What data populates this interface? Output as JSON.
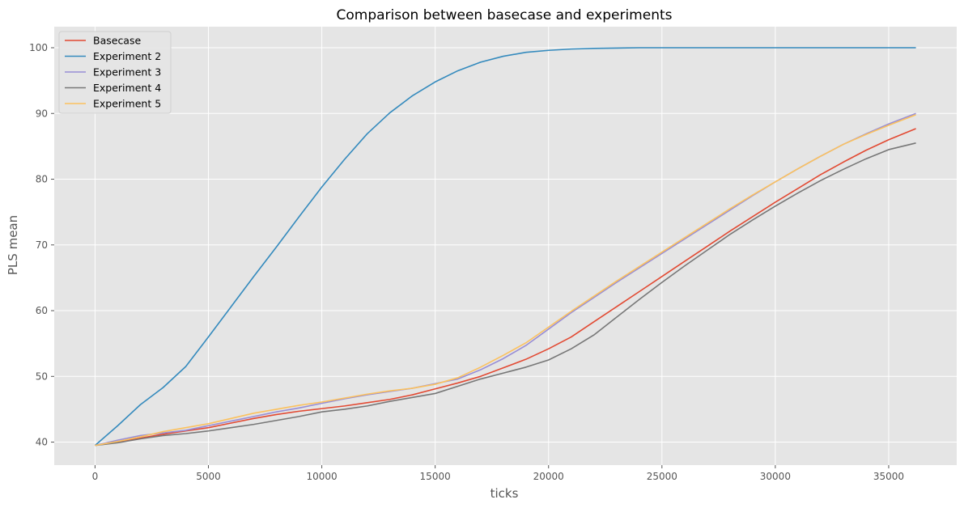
{
  "chart_data": {
    "type": "line",
    "title": "Comparison between basecase and experiments",
    "xlabel": "ticks",
    "ylabel": "PLS mean",
    "xlim": [
      -1800,
      38000
    ],
    "ylim": [
      36.5,
      103.2
    ],
    "xticks": [
      0,
      5000,
      10000,
      15000,
      20000,
      25000,
      30000,
      35000
    ],
    "yticks": [
      40,
      50,
      60,
      70,
      80,
      90,
      100
    ],
    "xtick_labels": [
      "0",
      "5000",
      "10000",
      "15000",
      "20000",
      "25000",
      "30000",
      "35000"
    ],
    "ytick_labels": [
      "40",
      "50",
      "60",
      "70",
      "80",
      "90",
      "100"
    ],
    "grid": true,
    "legend_position": "top-left",
    "style": {
      "plot_bg": "#e5e5e5",
      "grid": "#ffffff"
    },
    "series": [
      {
        "name": "Basecase",
        "color": "#e24a33",
        "x": [
          0,
          1000,
          2000,
          3000,
          4000,
          5000,
          6000,
          7000,
          8000,
          9000,
          10000,
          11000,
          12000,
          13000,
          14000,
          15000,
          16000,
          17000,
          18000,
          19000,
          20000,
          21000,
          22000,
          23000,
          24000,
          25000,
          26000,
          27000,
          28000,
          29000,
          30000,
          31000,
          32000,
          33000,
          34000,
          35000,
          36200
        ],
        "y": [
          39.5,
          40.0,
          40.6,
          41.2,
          41.7,
          42.2,
          42.9,
          43.6,
          44.2,
          44.7,
          45.1,
          45.5,
          46.0,
          46.5,
          47.2,
          48.1,
          49.0,
          50.0,
          51.3,
          52.6,
          54.2,
          56.0,
          58.3,
          60.6,
          62.9,
          65.2,
          67.5,
          69.8,
          72.1,
          74.3,
          76.5,
          78.6,
          80.7,
          82.6,
          84.4,
          86.0,
          87.7
        ]
      },
      {
        "name": "Experiment 2",
        "color": "#348abd",
        "x": [
          0,
          1000,
          2000,
          3000,
          4000,
          5000,
          6000,
          7000,
          8000,
          9000,
          10000,
          11000,
          12000,
          13000,
          14000,
          15000,
          16000,
          17000,
          18000,
          19000,
          20000,
          21000,
          22000,
          23000,
          24000,
          26000,
          28000,
          30000,
          32000,
          34000,
          36200
        ],
        "y": [
          39.5,
          42.5,
          45.7,
          48.3,
          51.5,
          56.0,
          60.6,
          65.2,
          69.7,
          74.3,
          78.8,
          83.0,
          86.9,
          90.1,
          92.7,
          94.8,
          96.5,
          97.8,
          98.7,
          99.3,
          99.6,
          99.8,
          99.9,
          99.95,
          100.0,
          100.0,
          100.0,
          100.0,
          100.0,
          100.0,
          100.0
        ]
      },
      {
        "name": "Experiment 3",
        "color": "#988ed5",
        "x": [
          0,
          1000,
          2000,
          3000,
          4000,
          5000,
          6000,
          7000,
          8000,
          9000,
          10000,
          11000,
          12000,
          13000,
          14000,
          15000,
          16000,
          17000,
          18000,
          19000,
          20000,
          21000,
          22000,
          23000,
          24000,
          25000,
          26000,
          27000,
          28000,
          29000,
          30000,
          31000,
          32000,
          33000,
          34000,
          35000,
          36200
        ],
        "y": [
          39.5,
          40.3,
          41.0,
          41.4,
          41.8,
          42.5,
          43.2,
          43.9,
          44.6,
          45.2,
          45.9,
          46.6,
          47.2,
          47.7,
          48.2,
          48.9,
          49.6,
          51.0,
          52.7,
          54.7,
          57.2,
          59.7,
          62.0,
          64.3,
          66.5,
          68.7,
          70.9,
          73.1,
          75.3,
          77.5,
          79.6,
          81.6,
          83.5,
          85.3,
          86.9,
          88.4,
          90.0
        ]
      },
      {
        "name": "Experiment 4",
        "color": "#777777",
        "x": [
          0,
          1000,
          2000,
          3000,
          4000,
          5000,
          6000,
          7000,
          8000,
          9000,
          10000,
          11000,
          12000,
          13000,
          14000,
          15000,
          16000,
          17000,
          18000,
          19000,
          20000,
          21000,
          22000,
          23000,
          24000,
          25000,
          26000,
          27000,
          28000,
          29000,
          30000,
          31000,
          32000,
          33000,
          34000,
          35000,
          36200
        ],
        "y": [
          39.5,
          39.9,
          40.5,
          41.0,
          41.3,
          41.7,
          42.2,
          42.7,
          43.3,
          43.9,
          44.6,
          45.0,
          45.5,
          46.2,
          46.8,
          47.4,
          48.5,
          49.6,
          50.5,
          51.4,
          52.5,
          54.2,
          56.3,
          59.0,
          61.7,
          64.3,
          66.8,
          69.2,
          71.6,
          73.8,
          75.9,
          77.9,
          79.8,
          81.5,
          83.1,
          84.5,
          85.5
        ]
      },
      {
        "name": "Experiment 5",
        "color": "#fbc15e",
        "x": [
          0,
          1000,
          2000,
          3000,
          4000,
          5000,
          6000,
          7000,
          8000,
          9000,
          10000,
          11000,
          12000,
          13000,
          14000,
          15000,
          16000,
          17000,
          18000,
          19000,
          20000,
          21000,
          22000,
          23000,
          24000,
          25000,
          26000,
          27000,
          28000,
          29000,
          30000,
          31000,
          32000,
          33000,
          34000,
          35000,
          36200
        ],
        "y": [
          39.5,
          40.1,
          40.8,
          41.6,
          42.2,
          42.8,
          43.6,
          44.4,
          45.0,
          45.6,
          46.1,
          46.7,
          47.3,
          47.8,
          48.2,
          48.8,
          49.8,
          51.4,
          53.2,
          55.1,
          57.5,
          59.9,
          62.2,
          64.5,
          66.7,
          68.9,
          71.1,
          73.3,
          75.5,
          77.6,
          79.6,
          81.6,
          83.5,
          85.3,
          86.8,
          88.2,
          89.8
        ]
      }
    ]
  }
}
